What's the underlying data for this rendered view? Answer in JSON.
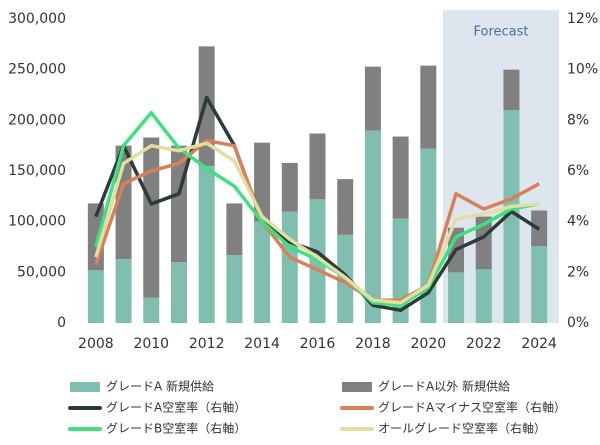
{
  "chart_data": {
    "type": "bar",
    "annotation": "Forecast",
    "categories": [
      "2008",
      null,
      "2010",
      null,
      "2012",
      null,
      "2014",
      null,
      "2016",
      null,
      "2018",
      null,
      "2020",
      null,
      "2022",
      null,
      "2024"
    ],
    "ylim": [
      0,
      300000
    ],
    "yticks": [
      0,
      {
        "value": 50000,
        "label": "50,000"
      },
      {
        "value": 100000,
        "label": "100,000"
      },
      {
        "value": 150000,
        "label": "150,000"
      },
      {
        "value": 200000,
        "label": "200,000"
      },
      {
        "value": 250000,
        "label": "250,000"
      },
      {
        "value": 300000,
        "label": "300,000"
      }
    ],
    "y2lim": [
      0,
      12
    ],
    "y2ticks": [
      {
        "value": 0,
        "label": "0%"
      },
      {
        "value": 2,
        "label": "2%"
      },
      {
        "value": 4,
        "label": "4%"
      },
      {
        "value": 6,
        "label": "6%"
      },
      {
        "value": 8,
        "label": "8%"
      },
      {
        "value": 10,
        "label": "10%"
      },
      {
        "value": 12,
        "label": "12%"
      }
    ],
    "series": [
      {
        "name": "グレードA 新規供給",
        "type": "bar",
        "color": "#80bfb0",
        "values": [
          52000,
          63000,
          25000,
          60000,
          155000,
          67000,
          100000,
          110000,
          122000,
          87000,
          190000,
          103000,
          172000,
          50000,
          53000,
          210000,
          76000
        ]
      },
      {
        "name": "グレードA以外 新規供給",
        "type": "bar",
        "color": "#808080",
        "values": [
          66000,
          112000,
          158000,
          115000,
          118000,
          51000,
          78000,
          48000,
          65000,
          55000,
          63000,
          81000,
          82000,
          44000,
          52000,
          40000,
          35000
        ]
      },
      {
        "name": "グレードA空室率（右軸）",
        "type": "line",
        "axis": "y2",
        "color": "#2c3a3a",
        "values": [
          4.2,
          7.0,
          4.7,
          5.1,
          8.9,
          7.0,
          4.0,
          3.2,
          2.8,
          1.9,
          0.7,
          0.5,
          1.2,
          2.9,
          3.4,
          4.4,
          3.7
        ]
      },
      {
        "name": "グレードAマイナス空室率（右軸）",
        "type": "line",
        "axis": "y2",
        "color": "#d9805a",
        "values": [
          2.3,
          5.5,
          6.0,
          6.3,
          7.2,
          7.0,
          4.0,
          2.6,
          2.1,
          1.6,
          0.9,
          0.9,
          1.5,
          5.1,
          4.5,
          4.9,
          5.5
        ]
      },
      {
        "name": "グレードB空室率（右軸）",
        "type": "line",
        "axis": "y2",
        "color": "#3ee07f",
        "values": [
          3.0,
          7.0,
          8.3,
          6.9,
          6.1,
          5.4,
          4.0,
          3.0,
          2.5,
          1.8,
          0.8,
          0.7,
          1.4,
          3.4,
          3.9,
          4.5,
          4.7
        ]
      },
      {
        "name": "オールグレード空室率（右軸）",
        "type": "line",
        "axis": "y2",
        "color": "#e2dea2",
        "values": [
          2.6,
          6.3,
          7.0,
          6.8,
          7.1,
          6.4,
          4.2,
          3.3,
          2.6,
          1.8,
          0.9,
          0.8,
          1.5,
          4.1,
          4.3,
          4.6,
          4.7
        ]
      }
    ]
  }
}
